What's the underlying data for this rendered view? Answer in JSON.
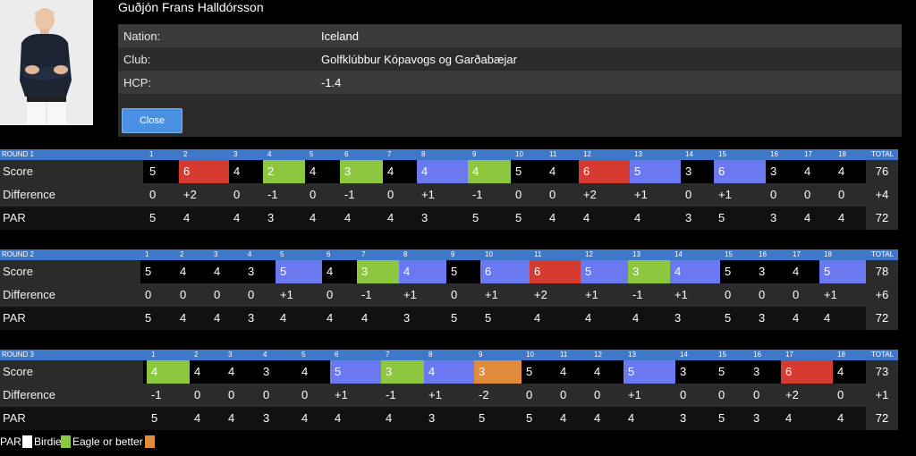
{
  "player": {
    "name": "Guðjón Frans Halldórsson",
    "info": [
      {
        "label": "Nation:",
        "value": "Iceland"
      },
      {
        "label": "Club:",
        "value": "Golfklúbbur Kópavogs og Garðabæjar"
      },
      {
        "label": "HCP:",
        "value": "-1.4"
      }
    ],
    "close_label": "Close"
  },
  "row_labels": {
    "score": "Score",
    "difference": "Difference",
    "par": "PAR"
  },
  "total_label": "TOTAL",
  "colors": {
    "birdie": "#6a79f0",
    "eagle_or_better": "#8dc63f",
    "bogey": "#d63b31",
    "double_bogey_or_worse": "#e08a3c",
    "par": "#000000",
    "round_header": "#3f78c8"
  },
  "rounds": [
    {
      "title": "ROUND 1",
      "score": [
        "5",
        "6",
        "4",
        "2",
        "4",
        "3",
        "4",
        "4",
        "4",
        "5",
        "4",
        "6",
        "5",
        "3",
        "6",
        "3",
        "4",
        "4"
      ],
      "difference": [
        "0",
        "+2",
        "0",
        "-1",
        "0",
        "-1",
        "0",
        "+1",
        "-1",
        "0",
        "0",
        "+2",
        "+1",
        "0",
        "+1",
        "0",
        "0",
        "0"
      ],
      "par": [
        "5",
        "4",
        "4",
        "3",
        "4",
        "4",
        "4",
        "3",
        "5",
        "5",
        "4",
        "4",
        "4",
        "3",
        "5",
        "3",
        "4",
        "4"
      ],
      "score_type": [
        "par",
        "bogey",
        "par",
        "eagle",
        "par",
        "eagle",
        "par",
        "birdie",
        "eagle",
        "par",
        "par",
        "bogey",
        "birdie",
        "par",
        "birdie",
        "par",
        "par",
        "par"
      ],
      "totals": {
        "score": "76",
        "difference": "+4",
        "par": "72"
      }
    },
    {
      "title": "ROUND 2",
      "score": [
        "5",
        "4",
        "4",
        "3",
        "5",
        "4",
        "3",
        "4",
        "5",
        "6",
        "6",
        "5",
        "3",
        "4",
        "5",
        "3",
        "4",
        "5"
      ],
      "difference": [
        "0",
        "0",
        "0",
        "0",
        "+1",
        "0",
        "-1",
        "+1",
        "0",
        "+1",
        "+2",
        "+1",
        "-1",
        "+1",
        "0",
        "0",
        "0",
        "+1"
      ],
      "par": [
        "5",
        "4",
        "4",
        "3",
        "4",
        "4",
        "4",
        "3",
        "5",
        "5",
        "4",
        "4",
        "4",
        "3",
        "5",
        "3",
        "4",
        "4"
      ],
      "score_type": [
        "par",
        "par",
        "par",
        "par",
        "birdie",
        "par",
        "eagle",
        "birdie",
        "par",
        "birdie",
        "bogey",
        "birdie",
        "eagle",
        "birdie",
        "par",
        "par",
        "par",
        "birdie"
      ],
      "totals": {
        "score": "78",
        "difference": "+6",
        "par": "72"
      }
    },
    {
      "title": "ROUND 3",
      "score": [
        "4",
        "4",
        "4",
        "3",
        "4",
        "5",
        "3",
        "4",
        "3",
        "5",
        "4",
        "4",
        "5",
        "3",
        "5",
        "3",
        "6",
        "4"
      ],
      "difference": [
        "-1",
        "0",
        "0",
        "0",
        "0",
        "+1",
        "-1",
        "+1",
        "-2",
        "0",
        "0",
        "0",
        "+1",
        "0",
        "0",
        "0",
        "+2",
        "0"
      ],
      "par": [
        "5",
        "4",
        "4",
        "3",
        "4",
        "4",
        "4",
        "3",
        "5",
        "5",
        "4",
        "4",
        "4",
        "3",
        "5",
        "3",
        "4",
        "4"
      ],
      "score_type": [
        "eagle",
        "par",
        "par",
        "par",
        "par",
        "birdie",
        "eagle",
        "birdie",
        "double",
        "par",
        "par",
        "par",
        "birdie",
        "par",
        "par",
        "par",
        "bogey",
        "par"
      ],
      "totals": {
        "score": "73",
        "difference": "+1",
        "par": "72"
      }
    }
  ],
  "legend": {
    "par": "PAR",
    "birdie": "Birdie",
    "eagle": "Eagle or better"
  }
}
